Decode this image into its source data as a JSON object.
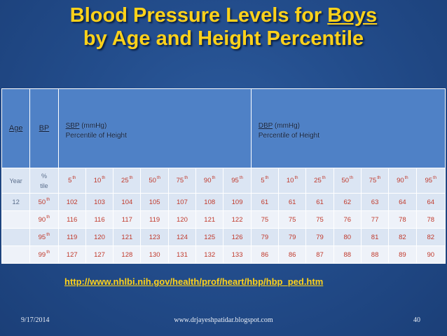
{
  "title": {
    "line1_prefix": "Blood Pressure Levels for ",
    "line1_emph": "Boys",
    "line2": "by Age and Height Percentile"
  },
  "table": {
    "age_label": "Age",
    "bp_label": "BP",
    "sbp_abbr": "SBP",
    "sbp_unit": " (mmHg)",
    "sbp_sub": "Percentile of Height",
    "dbp_abbr": "DBP",
    "dbp_unit": " (mmHg)",
    "dbp_sub": "Percentile of Height",
    "year_label": "Year",
    "pct_label": "%",
    "tile_label": "tile",
    "height_cols": [
      {
        "n": "5",
        "s": "th"
      },
      {
        "n": "10",
        "s": "th"
      },
      {
        "n": "25",
        "s": "th"
      },
      {
        "n": "50",
        "s": "th"
      },
      {
        "n": "75",
        "s": "th"
      },
      {
        "n": "90",
        "s": "th"
      },
      {
        "n": "95",
        "s": "th"
      },
      {
        "n": "5",
        "s": "th"
      },
      {
        "n": "10",
        "s": "th"
      },
      {
        "n": "25",
        "s": "th"
      },
      {
        "n": "50",
        "s": "th"
      },
      {
        "n": "75",
        "s": "th"
      },
      {
        "n": "90",
        "s": "th"
      },
      {
        "n": "95",
        "s": "th"
      }
    ],
    "rows": [
      {
        "age": "12",
        "bp_n": "50",
        "bp_s": "th",
        "values": [
          "102",
          "103",
          "104",
          "105",
          "107",
          "108",
          "109",
          "61",
          "61",
          "61",
          "62",
          "63",
          "64",
          "64"
        ]
      },
      {
        "age": "",
        "bp_n": "90",
        "bp_s": "th",
        "values": [
          "116",
          "116",
          "117",
          "119",
          "120",
          "121",
          "122",
          "75",
          "75",
          "75",
          "76",
          "77",
          "78",
          "78"
        ]
      },
      {
        "age": "",
        "bp_n": "95",
        "bp_s": "th",
        "values": [
          "119",
          "120",
          "121",
          "123",
          "124",
          "125",
          "126",
          "79",
          "79",
          "79",
          "80",
          "81",
          "82",
          "82"
        ]
      },
      {
        "age": "",
        "bp_n": "99",
        "bp_s": "th",
        "values": [
          "127",
          "127",
          "128",
          "130",
          "131",
          "132",
          "133",
          "86",
          "86",
          "87",
          "88",
          "88",
          "89",
          "90"
        ]
      }
    ]
  },
  "link": "http://www.nhlbi.nih.gov/health/prof/heart/hbp/hbp_ped.htm",
  "footer": {
    "date": "9/17/2014",
    "site": "www.drjayeshpatidar.blogspot.com",
    "page": "40"
  },
  "colors": {
    "background": "#234d8c",
    "title": "#ffd21a",
    "header_fill": "#4f81c6",
    "row_fill_a": "#dbe5f3",
    "row_fill_b": "#eef2f9",
    "value_text": "#c0392b"
  }
}
